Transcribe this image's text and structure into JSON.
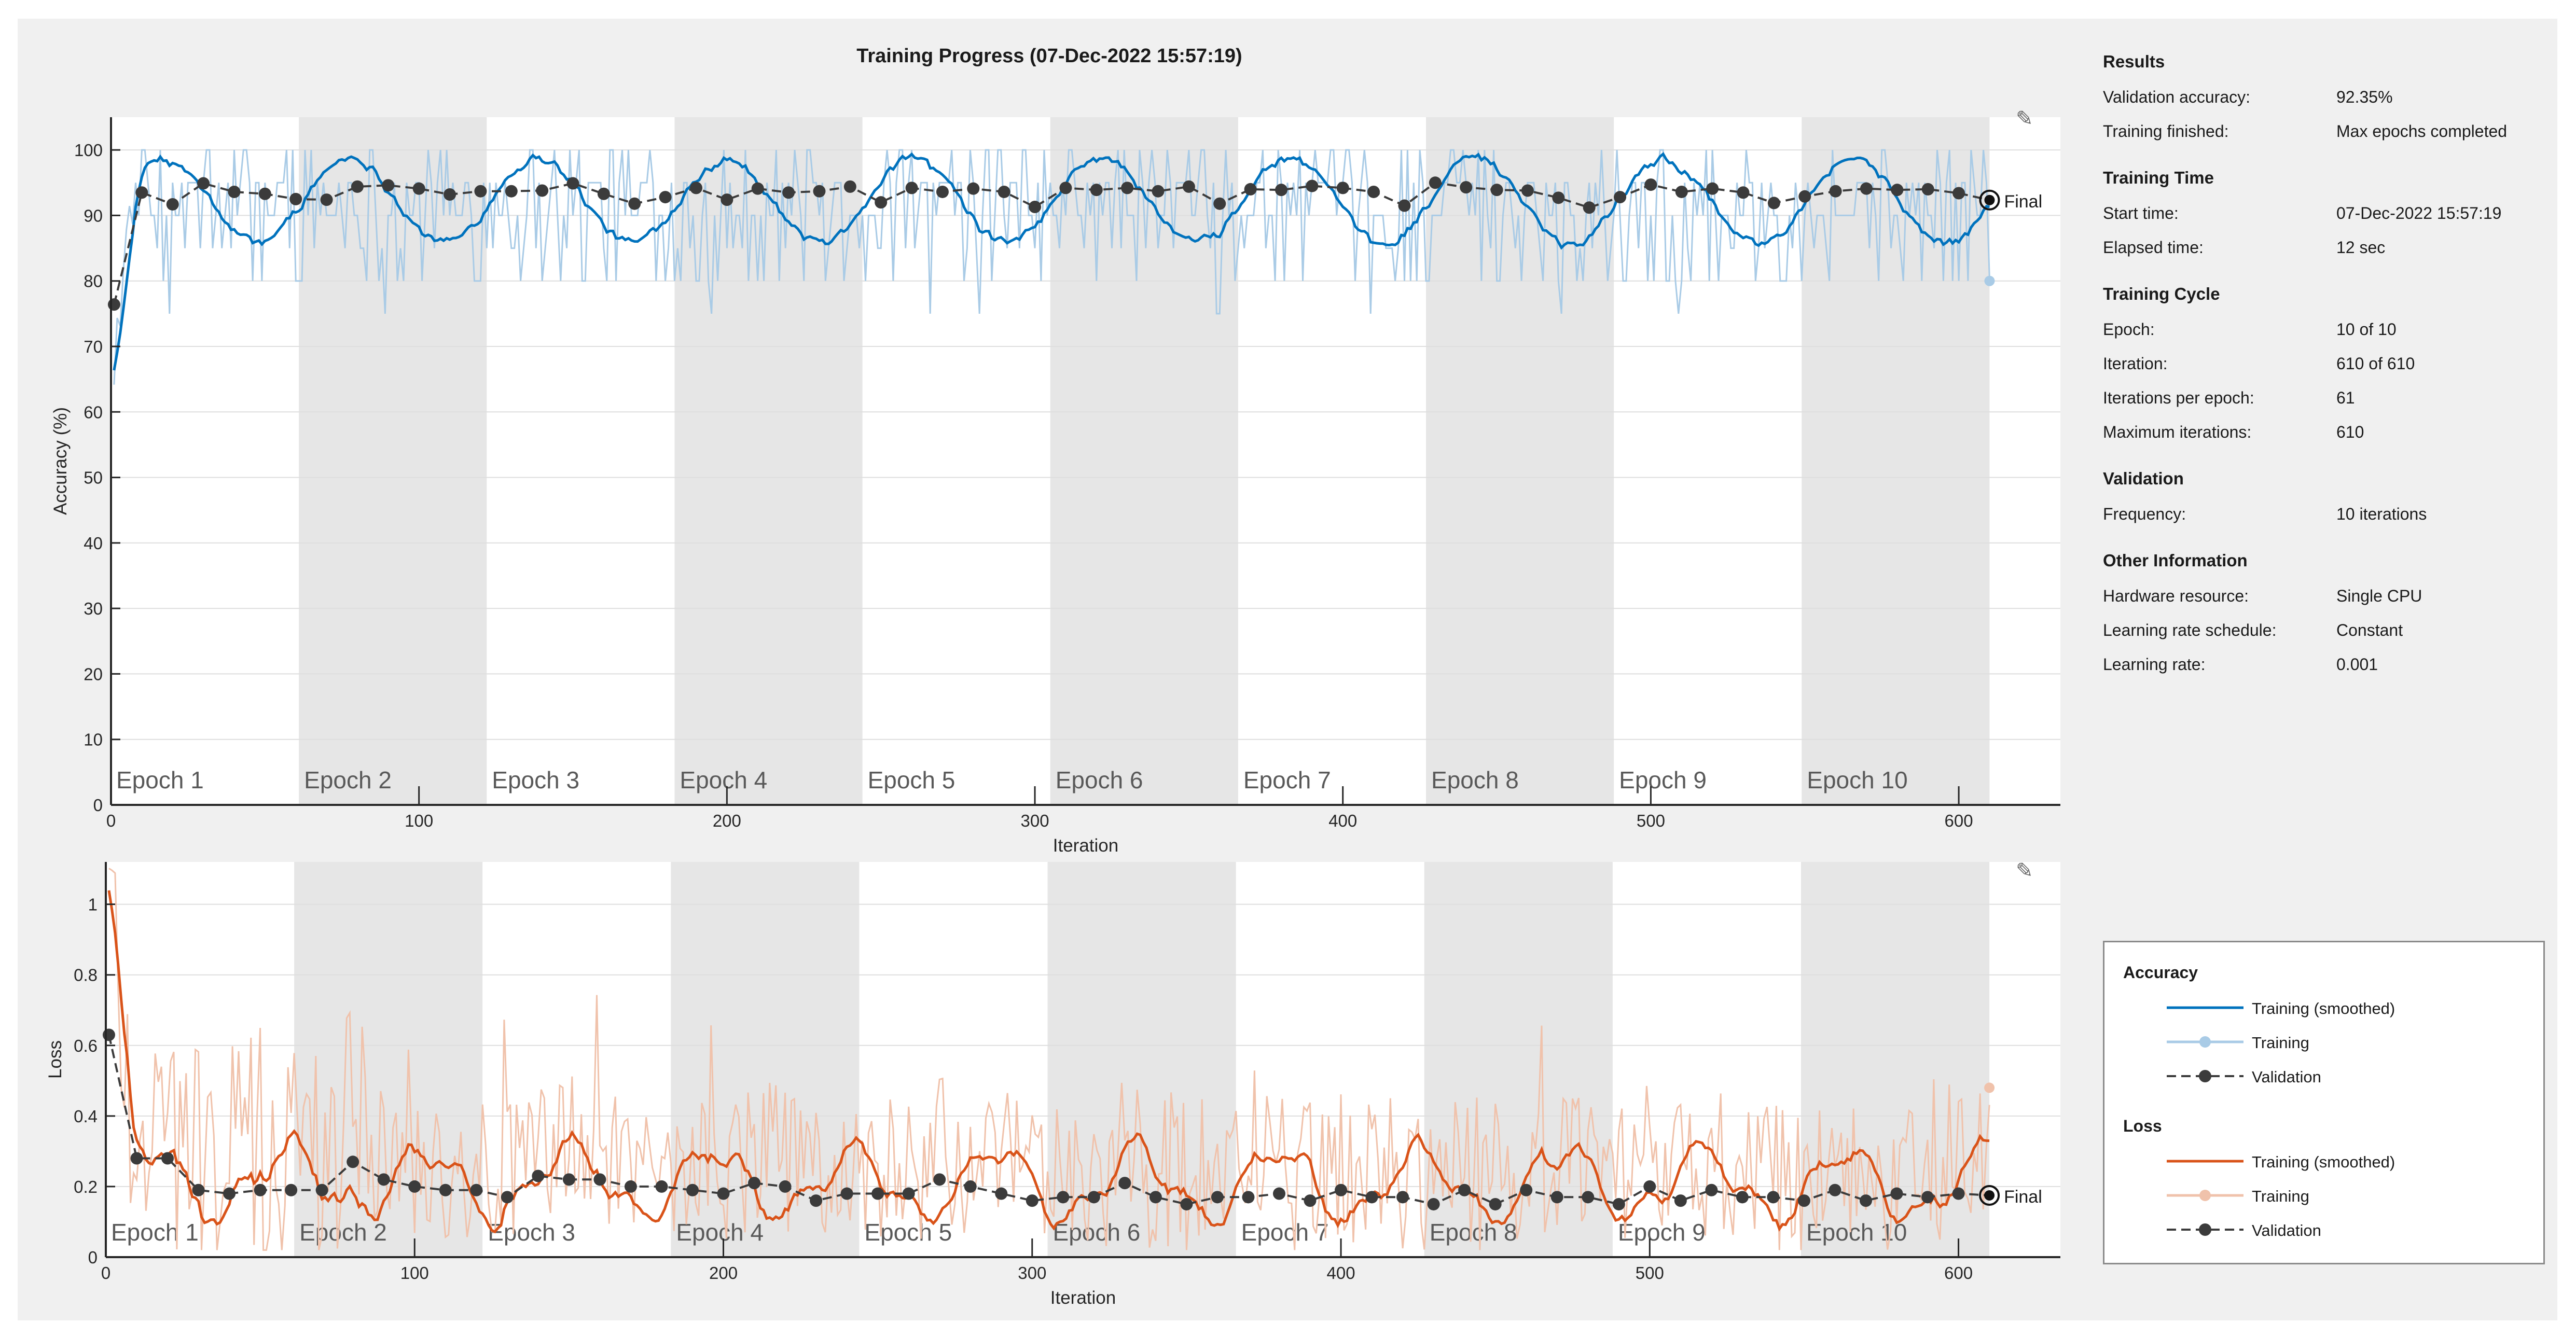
{
  "colors": {
    "frame_bg": "#f0f0f0",
    "epoch_shade": "#e6e6e6",
    "grid": "#dedede",
    "acc_smoothed": "#0072bd",
    "acc_raw": "#a9cbe6",
    "loss_smoothed": "#d95319",
    "loss_raw": "#f0c2ab",
    "validation": "#3b3b3b",
    "axis": "#262626"
  },
  "icons": {
    "export": "brush-export-icon"
  },
  "info": {
    "results": {
      "title": "Results",
      "rows": [
        {
          "label": "Validation accuracy:",
          "value": "92.35%"
        },
        {
          "label": "Training finished:",
          "value": "Max epochs completed"
        }
      ]
    },
    "training_time": {
      "title": "Training Time",
      "rows": [
        {
          "label": "Start time:",
          "value": "07-Dec-2022 15:57:19"
        },
        {
          "label": "Elapsed time:",
          "value": "12 sec"
        }
      ]
    },
    "training_cycle": {
      "title": "Training Cycle",
      "rows": [
        {
          "label": "Epoch:",
          "value": "10 of 10"
        },
        {
          "label": "Iteration:",
          "value": "610 of 610"
        },
        {
          "label": "Iterations per epoch:",
          "value": "61"
        },
        {
          "label": "Maximum iterations:",
          "value": "610"
        }
      ]
    },
    "validation": {
      "title": "Validation",
      "rows": [
        {
          "label": "Frequency:",
          "value": "10 iterations"
        }
      ]
    },
    "other": {
      "title": "Other Information",
      "rows": [
        {
          "label": "Hardware resource:",
          "value": "Single CPU"
        },
        {
          "label": "Learning rate schedule:",
          "value": "Constant"
        },
        {
          "label": "Learning rate:",
          "value": "0.001"
        }
      ]
    }
  },
  "legend": {
    "accuracy_title": "Accuracy",
    "loss_title": "Loss",
    "items": {
      "training_smoothed": "Training (smoothed)",
      "training": "Training",
      "validation": "Validation"
    }
  },
  "chart_data": [
    {
      "type": "line",
      "title": "Training Progress (07-Dec-2022 15:57:19)",
      "xlabel": "Iteration",
      "ylabel": "Accuracy (%)",
      "xlim": [
        0,
        633
      ],
      "ylim": [
        0,
        105
      ],
      "xticks": [
        0,
        100,
        200,
        300,
        400,
        500,
        600
      ],
      "yticks": [
        0,
        10,
        20,
        30,
        40,
        50,
        60,
        70,
        80,
        90,
        100
      ],
      "epochs": [
        "Epoch 1",
        "Epoch 2",
        "Epoch 3",
        "Epoch 4",
        "Epoch 5",
        "Epoch 6",
        "Epoch 7",
        "Epoch 8",
        "Epoch 9",
        "Epoch 10"
      ],
      "iterations_per_epoch": 61,
      "final_label": "Final",
      "final_training_point": [
        610,
        80
      ],
      "validation": {
        "x": [
          1,
          10,
          20,
          30,
          40,
          50,
          60,
          70,
          80,
          90,
          100,
          110,
          120,
          130,
          140,
          150,
          160,
          170,
          180,
          190,
          200,
          210,
          220,
          230,
          240,
          250,
          260,
          270,
          280,
          290,
          300,
          310,
          320,
          330,
          340,
          350,
          360,
          370,
          380,
          390,
          400,
          410,
          420,
          430,
          440,
          450,
          460,
          470,
          480,
          490,
          500,
          510,
          520,
          530,
          540,
          550,
          560,
          570,
          580,
          590,
          600,
          610
        ],
        "values": [
          76.4,
          93.5,
          91.7,
          94.9,
          93.6,
          93.3,
          92.5,
          92.4,
          94.4,
          94.6,
          94.1,
          93.2,
          93.7,
          93.7,
          93.8,
          94.9,
          93.3,
          91.8,
          92.8,
          94.2,
          92.4,
          94.1,
          93.5,
          93.7,
          94.4,
          92.0,
          94.2,
          93.6,
          94.1,
          93.6,
          91.3,
          94.2,
          93.9,
          94.2,
          93.7,
          94.4,
          91.8,
          94.0,
          93.9,
          94.5,
          94.2,
          93.6,
          91.5,
          95.0,
          94.3,
          93.9,
          93.8,
          92.7,
          91.2,
          92.8,
          94.7,
          93.6,
          94.1,
          93.5,
          91.9,
          92.9,
          93.7,
          94.1,
          93.9,
          94.0,
          93.4,
          92.35
        ]
      },
      "legend": [
        "Training (smoothed)",
        "Training",
        "Validation"
      ]
    },
    {
      "type": "line",
      "title": "",
      "xlabel": "Iteration",
      "ylabel": "Loss",
      "xlim": [
        0,
        633
      ],
      "ylim": [
        0,
        1.12
      ],
      "xticks": [
        0,
        100,
        200,
        300,
        400,
        500,
        600
      ],
      "yticks": [
        0,
        0.2,
        0.4,
        0.6,
        0.8,
        1
      ],
      "ytick_labels": [
        "0",
        "0.2",
        "0.4",
        "0.6",
        "0.8",
        "1"
      ],
      "epochs": [
        "Epoch 1",
        "Epoch 2",
        "Epoch 3",
        "Epoch 4",
        "Epoch 5",
        "Epoch 6",
        "Epoch 7",
        "Epoch 8",
        "Epoch 9",
        "Epoch 10"
      ],
      "iterations_per_epoch": 61,
      "final_label": "Final",
      "final_training_point": [
        610,
        0.48
      ],
      "validation": {
        "x": [
          1,
          10,
          20,
          30,
          40,
          50,
          60,
          70,
          80,
          90,
          100,
          110,
          120,
          130,
          140,
          150,
          160,
          170,
          180,
          190,
          200,
          210,
          220,
          230,
          240,
          250,
          260,
          270,
          280,
          290,
          300,
          310,
          320,
          330,
          340,
          350,
          360,
          370,
          380,
          390,
          400,
          410,
          420,
          430,
          440,
          450,
          460,
          470,
          480,
          490,
          500,
          510,
          520,
          530,
          540,
          550,
          560,
          570,
          580,
          590,
          600,
          610
        ],
        "values": [
          0.63,
          0.28,
          0.28,
          0.19,
          0.18,
          0.19,
          0.19,
          0.19,
          0.27,
          0.22,
          0.2,
          0.19,
          0.19,
          0.17,
          0.23,
          0.22,
          0.22,
          0.2,
          0.2,
          0.19,
          0.18,
          0.21,
          0.2,
          0.16,
          0.18,
          0.18,
          0.18,
          0.22,
          0.2,
          0.18,
          0.16,
          0.17,
          0.17,
          0.21,
          0.17,
          0.15,
          0.17,
          0.17,
          0.18,
          0.16,
          0.19,
          0.17,
          0.17,
          0.15,
          0.19,
          0.15,
          0.19,
          0.17,
          0.17,
          0.15,
          0.2,
          0.16,
          0.19,
          0.17,
          0.17,
          0.16,
          0.19,
          0.16,
          0.18,
          0.17,
          0.18,
          0.175
        ]
      },
      "legend": [
        "Training (smoothed)",
        "Training",
        "Validation"
      ]
    }
  ]
}
